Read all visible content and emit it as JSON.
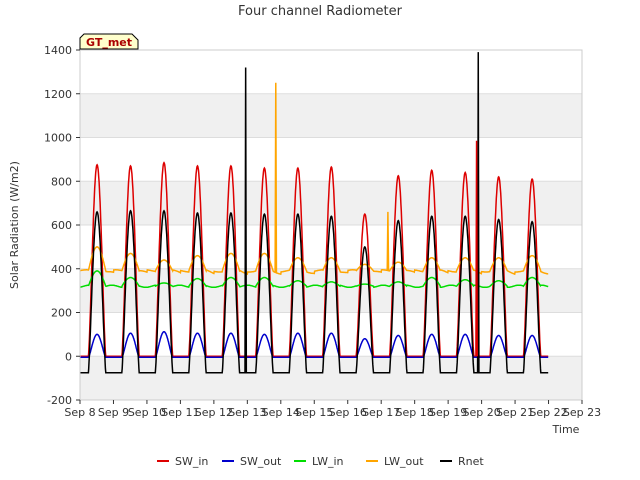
{
  "chart_data": {
    "type": "line",
    "title": "Four channel Radiometer",
    "xlabel": "Time",
    "ylabel": "Solar Radiation (W/m2)",
    "badge": "GT_met",
    "ylim": [
      -200,
      1400
    ],
    "xlim": [
      8,
      23
    ],
    "yticks": [
      -200,
      0,
      200,
      400,
      600,
      800,
      1000,
      1200,
      1400
    ],
    "xticks": [
      {
        "v": 8,
        "label": "Sep 8"
      },
      {
        "v": 9,
        "label": "Sep 9"
      },
      {
        "v": 10,
        "label": "Sep 10"
      },
      {
        "v": 11,
        "label": "Sep 11"
      },
      {
        "v": 12,
        "label": "Sep 12"
      },
      {
        "v": 13,
        "label": "Sep 13"
      },
      {
        "v": 14,
        "label": "Sep 14"
      },
      {
        "v": 15,
        "label": "Sep 15"
      },
      {
        "v": 16,
        "label": "Sep 16"
      },
      {
        "v": 17,
        "label": "Sep 17"
      },
      {
        "v": 18,
        "label": "Sep 18"
      },
      {
        "v": 19,
        "label": "Sep 19"
      },
      {
        "v": 20,
        "label": "Sep 20"
      },
      {
        "v": 21,
        "label": "Sep 21"
      },
      {
        "v": 22,
        "label": "Sep 22"
      },
      {
        "v": 23,
        "label": "Sep 23"
      }
    ],
    "grid": true,
    "legend_position": "bottom",
    "days": [
      8.0,
      9.0,
      10.0,
      11.0,
      12.0,
      13.0,
      14.0,
      15.0,
      16.0,
      17.0,
      18.0,
      19.0,
      20.0,
      21.0
    ],
    "series": [
      {
        "name": "SW_in",
        "color": "#dd0000",
        "daily_peak": [
          875,
          870,
          885,
          870,
          870,
          860,
          860,
          865,
          650,
          825,
          850,
          840,
          820,
          810
        ],
        "night": 0
      },
      {
        "name": "SW_out",
        "color": "#0000cc",
        "daily_peak": [
          100,
          105,
          112,
          105,
          105,
          100,
          105,
          105,
          80,
          95,
          100,
          100,
          95,
          95
        ],
        "night": -5
      },
      {
        "name": "LW_in",
        "color": "#00dd00",
        "daily_peak": [
          390,
          360,
          335,
          355,
          360,
          360,
          345,
          340,
          330,
          340,
          360,
          350,
          345,
          360
        ],
        "night": 320
      },
      {
        "name": "LW_out",
        "color": "#ffa500",
        "daily_peak": [
          500,
          470,
          440,
          460,
          470,
          470,
          450,
          450,
          420,
          430,
          450,
          450,
          450,
          460
        ],
        "night": 390
      },
      {
        "name": "Rnet",
        "color": "#000000",
        "daily_peak": [
          660,
          665,
          665,
          655,
          655,
          650,
          650,
          640,
          500,
          620,
          640,
          640,
          625,
          615
        ],
        "night": -75
      }
    ],
    "spikes": [
      {
        "series": "Rnet",
        "x": 12.95,
        "y": 1320
      },
      {
        "series": "LW_out",
        "x": 13.85,
        "y": 1250
      },
      {
        "series": "Rnet",
        "x": 19.9,
        "y": 1390
      },
      {
        "series": "SW_in",
        "x": 19.85,
        "y": 985
      },
      {
        "series": "LW_out",
        "x": 17.2,
        "y": 660
      }
    ]
  }
}
